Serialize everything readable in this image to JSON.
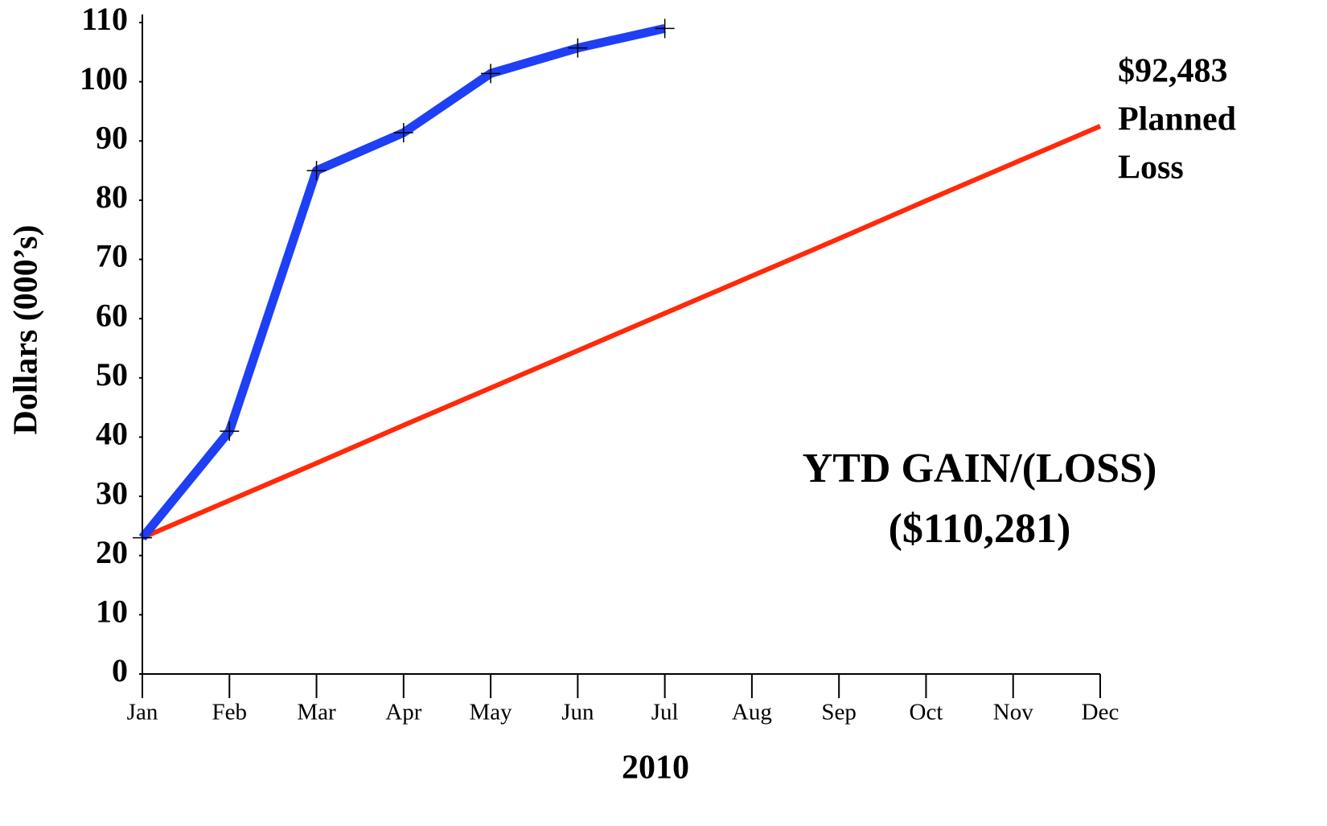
{
  "chart_data": {
    "type": "line",
    "xlabel": "2010",
    "ylabel": "Dollars (000’s)",
    "categories": [
      "Jan",
      "Feb",
      "Mar",
      "Apr",
      "May",
      "Jun",
      "Jul",
      "Aug",
      "Sep",
      "Oct",
      "Nov",
      "Dec"
    ],
    "series": [
      {
        "color": "#1f3ff5",
        "values": [
          23,
          41,
          85,
          91.4,
          101.4,
          105.7,
          109,
          null,
          null,
          null,
          null,
          null
        ],
        "markers": true
      },
      {
        "color": "#ff2a0a",
        "values": [
          23,
          29.3,
          35.6,
          42,
          48.3,
          54.6,
          60.9,
          67.2,
          73.5,
          79.9,
          86.2,
          92.5
        ],
        "markers": false
      }
    ],
    "ylim": [
      0,
      110
    ],
    "yticks": [
      0,
      10,
      20,
      30,
      40,
      50,
      60,
      70,
      80,
      90,
      100,
      110
    ],
    "annotations": [
      "$92,483",
      "Planned",
      "Loss",
      "YTD GAIN/(LOSS)",
      "($110,281)"
    ]
  }
}
